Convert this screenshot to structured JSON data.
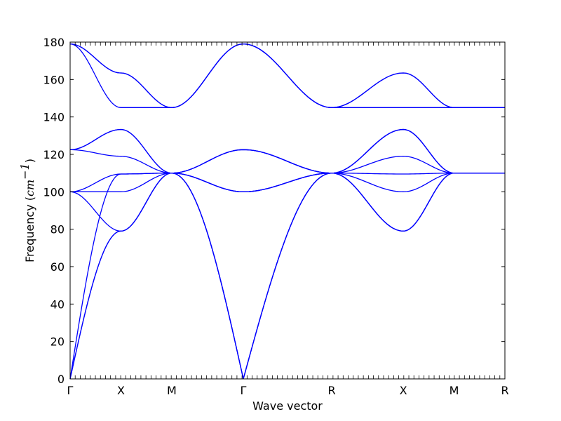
{
  "chart_data": {
    "type": "line",
    "title": "",
    "xlabel": "Wave vector",
    "ylabel": "Frequency (cm⁻¹)",
    "ylabel_parts": {
      "prefix": "Frequency (",
      "unit": "cm",
      "exponent": "−1",
      "suffix": ")"
    },
    "ylim": [
      0,
      180
    ],
    "yticks": [
      0,
      20,
      40,
      60,
      80,
      100,
      120,
      140,
      160,
      180
    ],
    "xlim": [
      0,
      8.56
    ],
    "high_symmetry_points": [
      {
        "label": "Γ",
        "x": 0.0
      },
      {
        "label": "X",
        "x": 1.0
      },
      {
        "label": "M",
        "x": 2.0
      },
      {
        "label": "Γ",
        "x": 3.41
      },
      {
        "label": "R",
        "x": 5.15
      },
      {
        "label": "X",
        "x": 6.56
      },
      {
        "label": "M",
        "x": 7.56
      },
      {
        "label": "R",
        "x": 8.56
      }
    ],
    "line_color": "#0000ff",
    "grid": false,
    "legend": "none",
    "series": [
      {
        "values": [
          0,
          79,
          110,
          0,
          110,
          79,
          110,
          110
        ]
      },
      {
        "values": [
          0,
          79,
          110,
          0,
          110,
          79,
          110,
          110
        ]
      },
      {
        "values": [
          0,
          109.5,
          110,
          0,
          110,
          100,
          110,
          110
        ]
      },
      {
        "values": [
          100,
          79,
          110,
          100,
          110,
          79,
          110,
          110
        ]
      },
      {
        "values": [
          100,
          100,
          110,
          100,
          110,
          109.5,
          110,
          110
        ]
      },
      {
        "values": [
          100,
          109.5,
          110,
          100,
          110,
          119,
          110,
          110
        ]
      },
      {
        "values": [
          122.5,
          119,
          110,
          122.5,
          110,
          133.3,
          110,
          110
        ]
      },
      {
        "values": [
          122.5,
          133.3,
          110,
          122.5,
          110,
          133.3,
          110,
          110
        ]
      },
      {
        "values": [
          122.5,
          133.3,
          110,
          122.5,
          110,
          133.3,
          110,
          110
        ]
      },
      {
        "values": [
          179,
          145,
          145,
          179,
          145,
          145,
          145,
          145
        ]
      },
      {
        "values": [
          179,
          163.5,
          145,
          179,
          145,
          163.5,
          145,
          145
        ]
      },
      {
        "values": [
          179,
          163.5,
          145,
          179,
          145,
          163.5,
          145,
          145
        ]
      }
    ]
  }
}
